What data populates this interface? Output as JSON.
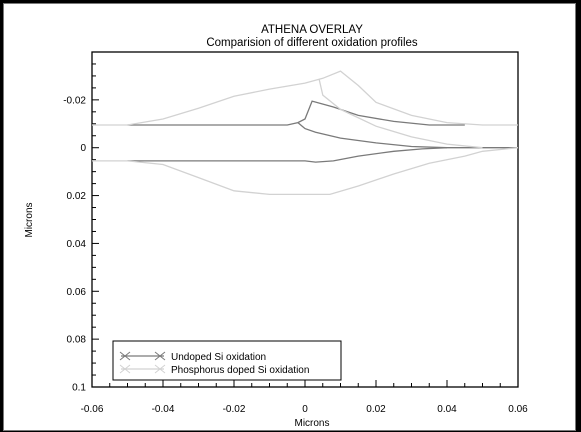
{
  "chart_data": {
    "type": "line",
    "title": "ATHENA OVERLAY",
    "subtitle": "Comparision of different oxidation profiles",
    "xlabel": "Microns",
    "ylabel": "Microns",
    "xlim": [
      -0.06,
      0.06
    ],
    "ylim": [
      -0.04,
      0.1
    ],
    "y_inverted": true,
    "x_ticks": [
      "-0.06",
      "-0.04",
      "-0.02",
      "0",
      "0.02",
      "0.04",
      "0.06"
    ],
    "y_ticks": [
      "-0.02",
      "0",
      "0.02",
      "0.04",
      "0.06",
      "0.08",
      "0.1"
    ],
    "legend_position": "bottom-left",
    "series": [
      {
        "name": "Undoped Si oxidation",
        "color": "#7a7a7a",
        "lines": [
          {
            "x": [
              -0.05,
              -0.01,
              -0.005,
              -0.002,
              0.0,
              0.002,
              0.008,
              0.015,
              0.025,
              0.035,
              0.045
            ],
            "y": [
              -0.0095,
              -0.0095,
              -0.0095,
              -0.0105,
              -0.012,
              -0.0195,
              -0.017,
              -0.0135,
              -0.011,
              -0.0095,
              -0.0095
            ]
          },
          {
            "x": [
              -0.002,
              0.0,
              0.003,
              0.01,
              0.02,
              0.03,
              0.04,
              0.05,
              0.06
            ],
            "y": [
              -0.0105,
              -0.008,
              -0.0065,
              -0.004,
              -0.002,
              -0.0005,
              0.0,
              0.0,
              0.0
            ]
          },
          {
            "x": [
              -0.05,
              -0.02,
              -0.005,
              0.0,
              0.003,
              0.008,
              0.015,
              0.025,
              0.033,
              0.04
            ],
            "y": [
              0.0055,
              0.0055,
              0.0055,
              0.0055,
              0.006,
              0.0055,
              0.0035,
              0.0015,
              0.0005,
              0.0
            ]
          }
        ]
      },
      {
        "name": "Phosphorus doped Si oxidation",
        "color": "#d2d2d2",
        "lines": [
          {
            "x": [
              -0.06,
              -0.05,
              -0.04,
              -0.03,
              -0.02,
              -0.01,
              0.0,
              0.005,
              0.01,
              0.015,
              0.02,
              0.03,
              0.04,
              0.05,
              0.06
            ],
            "y": [
              -0.0095,
              -0.0095,
              -0.012,
              -0.0165,
              -0.0215,
              -0.0245,
              -0.027,
              -0.029,
              -0.032,
              -0.026,
              -0.019,
              -0.0135,
              -0.0105,
              -0.0095,
              -0.0095
            ]
          },
          {
            "x": [
              0.004,
              0.005,
              0.01,
              0.02,
              0.03,
              0.04,
              0.05
            ],
            "y": [
              -0.0285,
              -0.022,
              -0.016,
              -0.009,
              -0.0045,
              -0.0015,
              0.0
            ]
          },
          {
            "x": [
              -0.06,
              -0.05,
              -0.04,
              -0.03,
              -0.02,
              -0.01,
              0.0,
              0.007,
              0.015,
              0.025,
              0.035,
              0.045,
              0.05,
              0.06
            ],
            "y": [
              0.0055,
              0.0055,
              0.007,
              0.0125,
              0.018,
              0.0195,
              0.0195,
              0.0195,
              0.016,
              0.011,
              0.0065,
              0.0035,
              0.0015,
              0.0
            ]
          }
        ]
      }
    ]
  }
}
